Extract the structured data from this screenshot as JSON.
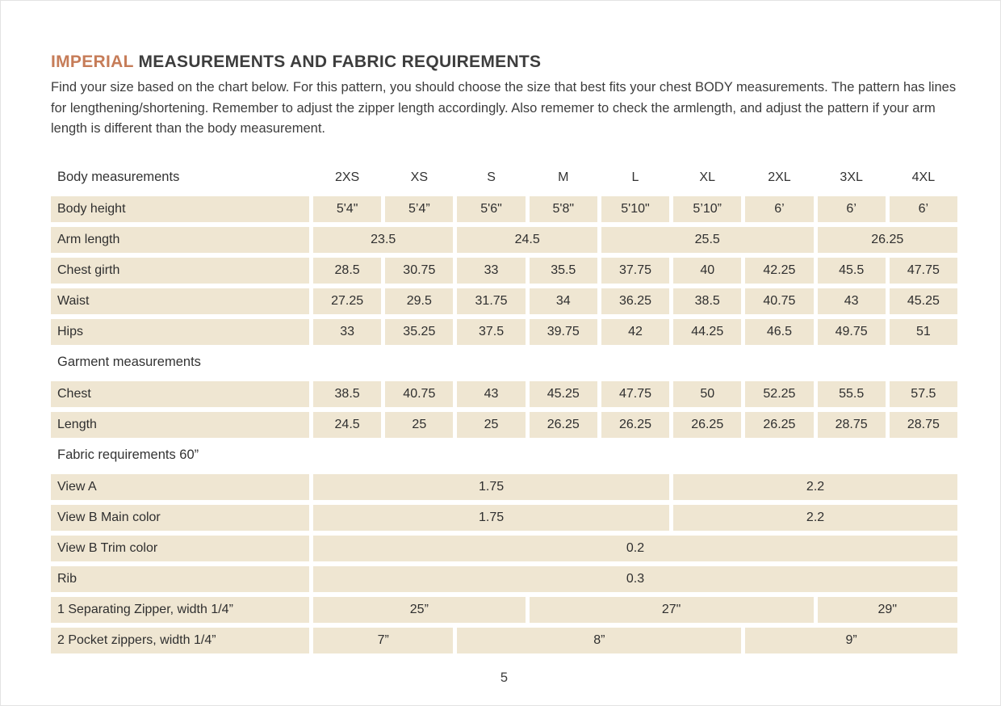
{
  "header": {
    "title_accent": "IMPERIAL",
    "title_rest": " MEASUREMENTS AND FABRIC REQUIREMENTS",
    "intro": "Find your size based on the chart below. For this pattern, you should choose the size that best fits your chest BODY measurements. The pattern has lines for lengthening/shortening. Remember to adjust the zipper length accordingly. Also rememer to check the armlength, and adjust the pattern if your arm length is different than the body measurement."
  },
  "colors": {
    "accent": "#c67c58",
    "cell_background": "#efe6d2",
    "text": "#3d3d3d"
  },
  "table": {
    "sizes": [
      "2XS",
      "XS",
      "S",
      "M",
      "L",
      "XL",
      "2XL",
      "3XL",
      "4XL"
    ],
    "rows": [
      {
        "section": true,
        "show_sizes": true,
        "label": "Body measurements"
      },
      {
        "label": "Body height",
        "cells": [
          {
            "value": "5'4\"",
            "span": 1
          },
          {
            "value": "5’4”",
            "span": 1
          },
          {
            "value": "5'6\"",
            "span": 1
          },
          {
            "value": "5'8\"",
            "span": 1
          },
          {
            "value": "5'10\"",
            "span": 1
          },
          {
            "value": "5’10”",
            "span": 1
          },
          {
            "value": "6’",
            "span": 1
          },
          {
            "value": "6’",
            "span": 1
          },
          {
            "value": "6’",
            "span": 1
          }
        ]
      },
      {
        "label": "Arm length",
        "cells": [
          {
            "value": "23.5",
            "span": 2
          },
          {
            "value": "24.5",
            "span": 2
          },
          {
            "value": "25.5",
            "span": 3
          },
          {
            "value": "26.25",
            "span": 2
          }
        ]
      },
      {
        "label": "Chest girth",
        "cells": [
          {
            "value": "28.5",
            "span": 1
          },
          {
            "value": "30.75",
            "span": 1
          },
          {
            "value": "33",
            "span": 1
          },
          {
            "value": "35.5",
            "span": 1
          },
          {
            "value": "37.75",
            "span": 1
          },
          {
            "value": "40",
            "span": 1
          },
          {
            "value": "42.25",
            "span": 1
          },
          {
            "value": "45.5",
            "span": 1
          },
          {
            "value": "47.75",
            "span": 1
          }
        ]
      },
      {
        "label": "Waist",
        "cells": [
          {
            "value": "27.25",
            "span": 1
          },
          {
            "value": "29.5",
            "span": 1
          },
          {
            "value": "31.75",
            "span": 1
          },
          {
            "value": "34",
            "span": 1
          },
          {
            "value": "36.25",
            "span": 1
          },
          {
            "value": "38.5",
            "span": 1
          },
          {
            "value": "40.75",
            "span": 1
          },
          {
            "value": "43",
            "span": 1
          },
          {
            "value": "45.25",
            "span": 1
          }
        ]
      },
      {
        "label": "Hips",
        "cells": [
          {
            "value": "33",
            "span": 1
          },
          {
            "value": "35.25",
            "span": 1
          },
          {
            "value": "37.5",
            "span": 1
          },
          {
            "value": "39.75",
            "span": 1
          },
          {
            "value": "42",
            "span": 1
          },
          {
            "value": "44.25",
            "span": 1
          },
          {
            "value": "46.5",
            "span": 1
          },
          {
            "value": "49.75",
            "span": 1
          },
          {
            "value": "51",
            "span": 1
          }
        ]
      },
      {
        "section": true,
        "show_sizes": false,
        "label": "Garment measurements"
      },
      {
        "label": "Chest",
        "cells": [
          {
            "value": "38.5",
            "span": 1
          },
          {
            "value": "40.75",
            "span": 1
          },
          {
            "value": "43",
            "span": 1
          },
          {
            "value": "45.25",
            "span": 1
          },
          {
            "value": "47.75",
            "span": 1
          },
          {
            "value": "50",
            "span": 1
          },
          {
            "value": "52.25",
            "span": 1
          },
          {
            "value": "55.5",
            "span": 1
          },
          {
            "value": "57.5",
            "span": 1
          }
        ]
      },
      {
        "label": "Length",
        "cells": [
          {
            "value": "24.5",
            "span": 1
          },
          {
            "value": "25",
            "span": 1
          },
          {
            "value": "25",
            "span": 1
          },
          {
            "value": "26.25",
            "span": 1
          },
          {
            "value": "26.25",
            "span": 1
          },
          {
            "value": "26.25",
            "span": 1
          },
          {
            "value": "26.25",
            "span": 1
          },
          {
            "value": "28.75",
            "span": 1
          },
          {
            "value": "28.75",
            "span": 1
          }
        ]
      },
      {
        "section": true,
        "show_sizes": false,
        "label": "Fabric requirements 60”"
      },
      {
        "label": "View A",
        "cells": [
          {
            "value": "1.75",
            "span": 5
          },
          {
            "value": "2.2",
            "span": 4
          }
        ]
      },
      {
        "label": "View B Main color",
        "cells": [
          {
            "value": "1.75",
            "span": 5
          },
          {
            "value": "2.2",
            "span": 4
          }
        ]
      },
      {
        "label": "View B Trim color",
        "cells": [
          {
            "value": "0.2",
            "span": 9
          }
        ]
      },
      {
        "label": "Rib",
        "cells": [
          {
            "value": "0.3",
            "span": 9
          }
        ]
      },
      {
        "label": "1 Separating Zipper, width 1/4”",
        "cells": [
          {
            "value": "25”",
            "span": 3
          },
          {
            "value": "27\"",
            "span": 4
          },
          {
            "value": "29\"",
            "span": 2
          }
        ]
      },
      {
        "label": "2 Pocket zippers, width 1/4”",
        "cells": [
          {
            "value": "7”",
            "span": 2
          },
          {
            "value": "8”",
            "span": 4
          },
          {
            "value": "9”",
            "span": 3
          }
        ]
      }
    ]
  },
  "footer": {
    "page_number": "5"
  }
}
